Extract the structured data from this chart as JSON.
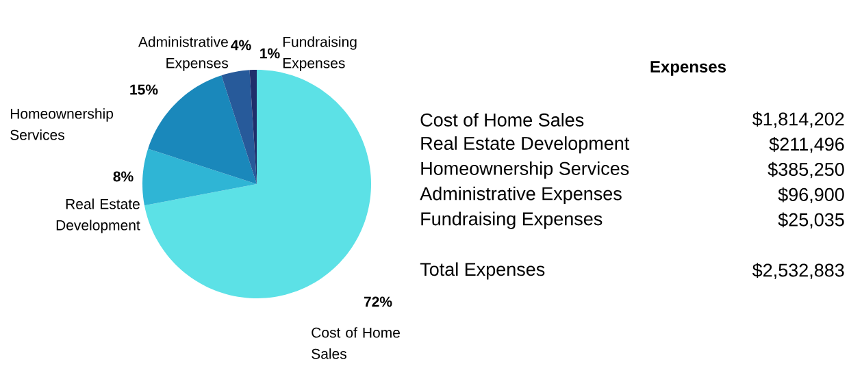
{
  "chart_data": [
    {
      "type": "pie",
      "categories": [
        "Cost of Home Sales",
        "Real Estate Development",
        "Homeownership Services",
        "Administrative Expenses",
        "Fundraising Expenses"
      ],
      "values": [
        72,
        8,
        15,
        4,
        1
      ],
      "value_labels": [
        "72%",
        "8%",
        "15%",
        "4%",
        "1%"
      ],
      "colors": [
        "#5ce1e6",
        "#2fb5d5",
        "#1a88bb",
        "#275a9a",
        "#1f2f6b"
      ]
    },
    {
      "type": "other",
      "title": "Expenses",
      "annotations": [
        "Cost of Home Sales",
        "$1,814,202",
        "Real Estate Development",
        "$211,496",
        "Homeownership Services",
        "$385,250",
        "Administrative Expenses",
        "$96,900",
        "Fundraising Expenses",
        "$25,035",
        "Total Expenses",
        "$2,532,883"
      ]
    }
  ]
}
